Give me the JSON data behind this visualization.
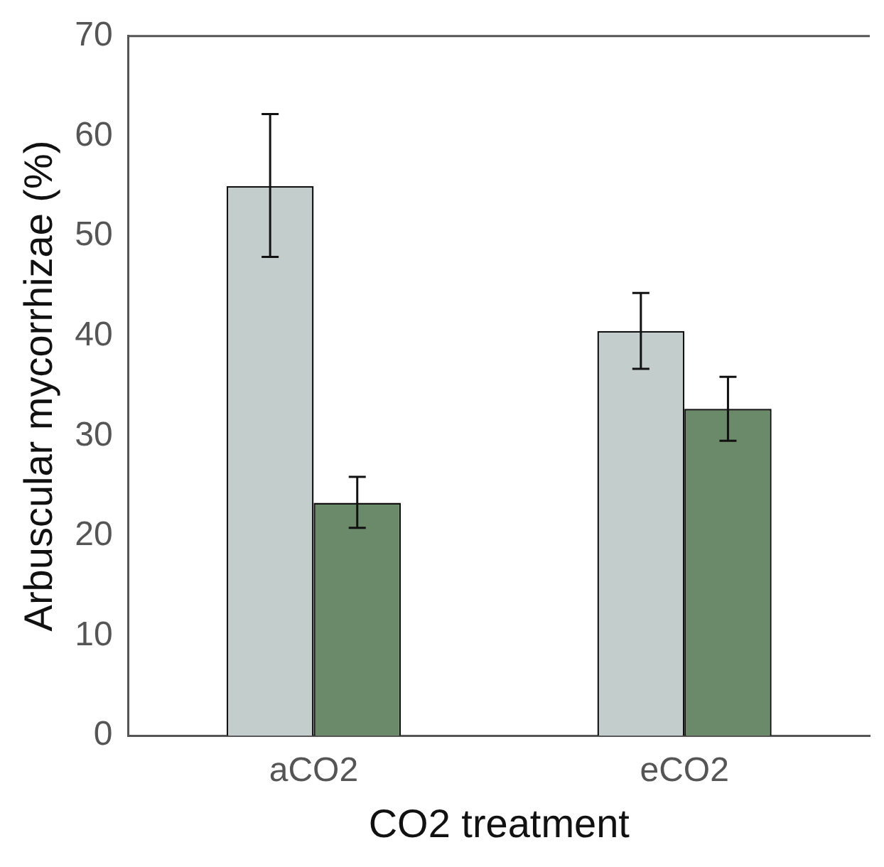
{
  "chart_data": {
    "type": "bar",
    "xlabel": "CO2 treatment",
    "ylabel": "Arbuscular mycorrhizae (%)",
    "categories": [
      "aCO2",
      "eCO2"
    ],
    "series": [
      {
        "color": "#c2cdcc",
        "values": [
          55.0,
          40.5
        ],
        "errors": [
          [
            47.9,
            62.2
          ],
          [
            36.7,
            44.3
          ]
        ]
      },
      {
        "color": "#6a8a69",
        "values": [
          23.3,
          32.7
        ],
        "errors": [
          [
            20.8,
            25.9
          ],
          [
            29.5,
            35.9
          ]
        ]
      }
    ],
    "ylim": [
      0,
      70
    ],
    "yticks": [
      0,
      10,
      20,
      30,
      40,
      50,
      60,
      70
    ],
    "grid": false,
    "legend": false
  }
}
